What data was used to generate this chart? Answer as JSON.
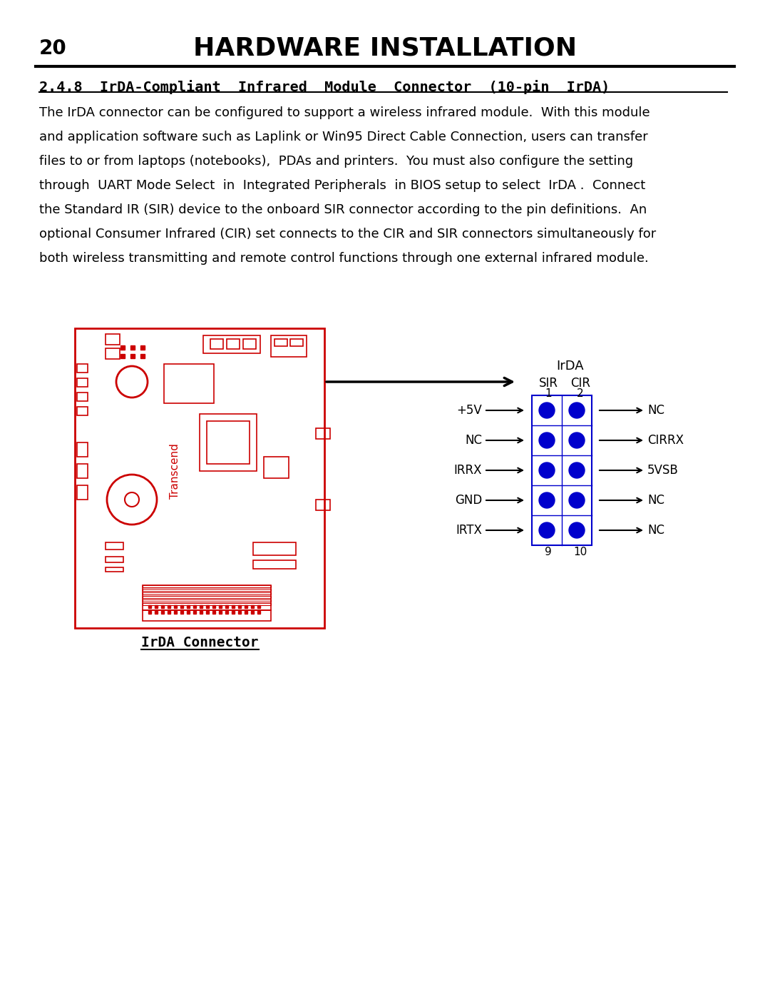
{
  "page_number": "20",
  "header_title": "HARDWARE INSTALLATION",
  "section_title": "2.4.8  IrDA-Compliant  Infrared  Module  Connector  (10-pin  IrDA)",
  "body_text": [
    "The IrDA connector can be configured to support a wireless infrared module.  With this module",
    "and application software such as Laplink or Win95 Direct Cable Connection, users can transfer",
    "files to or from laptops (notebooks),  PDAs and printers.  You must also configure the setting",
    "through  UART Mode Select  in  Integrated Peripherals  in BIOS setup to select  IrDA .  Connect",
    "the Standard IR (SIR) device to the onboard SIR connector according to the pin definitions.  An",
    "optional Consumer Infrared (CIR) set connects to the CIR and SIR connectors simultaneously for",
    "both wireless transmitting and remote control functions through one external infrared module."
  ],
  "irda_label": "IrDA",
  "sir_label": "SIR",
  "cir_label": "CIR",
  "pin1_label": "1",
  "pin2_label": "2",
  "pin9_label": "9",
  "pin10_label": "10",
  "left_pins": [
    "+5V",
    "NC",
    "IRRX",
    "GND",
    "IRTX"
  ],
  "right_pins": [
    "NC",
    "CIRRX",
    "5VSB",
    "NC",
    "NC"
  ],
  "connector_caption": "IrDA Connector",
  "dot_color": "#0000CC",
  "connector_border_color": "#0000CC",
  "board_color": "#CC0000",
  "bg_color": "#FFFFFF",
  "text_color": "#000000",
  "arrow_color": "#000000"
}
